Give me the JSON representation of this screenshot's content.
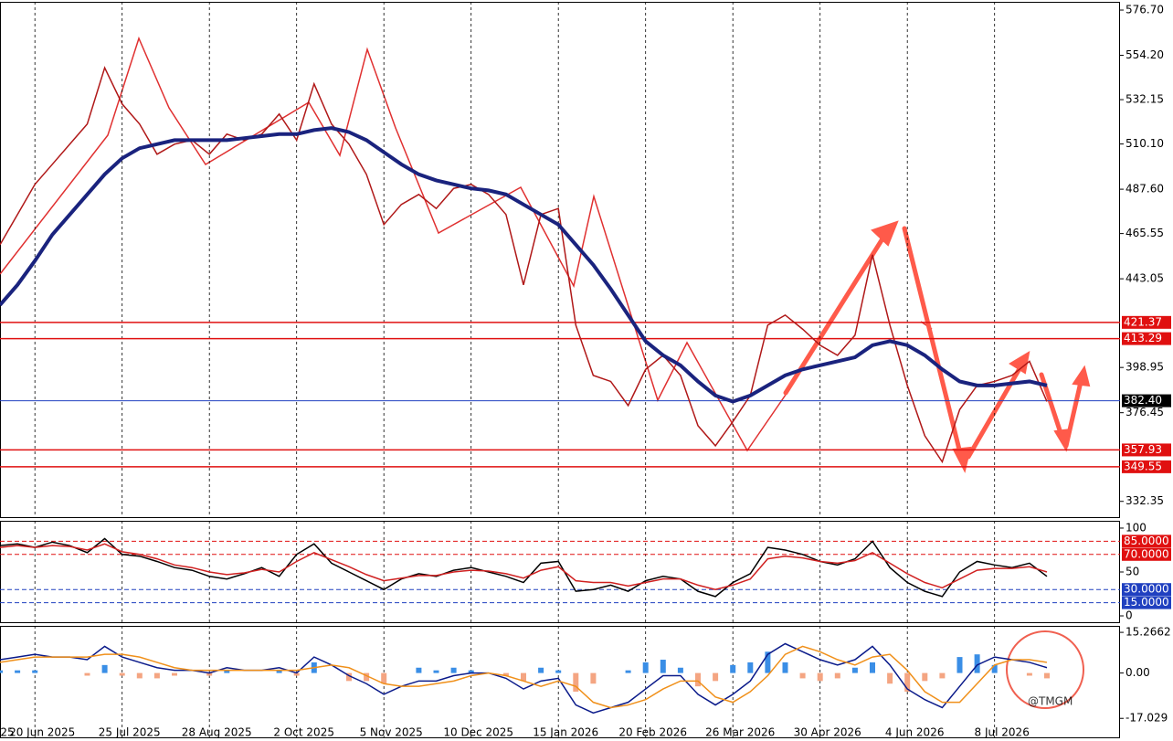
{
  "chart_data": [
    {
      "type": "line",
      "categories": [
        "25",
        null,
        "20 Jun 2025",
        null,
        null,
        null,
        null,
        "25 Jul 2025",
        null,
        null,
        null,
        null,
        "28 Aug 2025",
        null,
        null,
        null,
        null,
        "2 Oct 2025",
        null,
        null,
        null,
        null,
        "5 Nov 2025",
        null,
        null,
        null,
        null,
        "10 Dec 2025",
        null,
        null,
        null,
        null,
        "15 Jan 2026",
        null,
        null,
        null,
        null,
        "20 Feb 2026",
        null,
        null,
        null,
        null,
        "26 Mar 2026",
        null,
        null,
        null,
        null,
        "30 Apr 2026",
        null,
        null,
        null,
        null,
        "4 Jun 2026",
        null,
        null,
        null,
        null,
        "8 Jul 2026",
        null,
        null,
        null
      ],
      "series": [
        {
          "color": "#b01818",
          "values": [
            460,
            475,
            490,
            500,
            510,
            520,
            548,
            530,
            520,
            505,
            510,
            512,
            505,
            515,
            512,
            515,
            525,
            512,
            540,
            520,
            510,
            495,
            470,
            480,
            485,
            478,
            488,
            490,
            485,
            475,
            440,
            475,
            478,
            420,
            395,
            392,
            380,
            398,
            405,
            395,
            370,
            360,
            372,
            385,
            420,
            425,
            418,
            410,
            405,
            415,
            455,
            420,
            390,
            365,
            352,
            378,
            390,
            392,
            395,
            402,
            382
          ]
        },
        {
          "color": "#1a237e",
          "values": [
            430,
            440,
            452,
            465,
            475,
            485,
            495,
            503,
            508,
            510,
            512,
            512,
            512,
            512,
            513,
            514,
            515,
            515,
            517,
            518,
            516,
            512,
            506,
            500,
            495,
            492,
            490,
            488,
            487,
            485,
            480,
            475,
            470,
            460,
            450,
            438,
            425,
            412,
            405,
            400,
            392,
            385,
            382,
            385,
            390,
            395,
            398,
            400,
            402,
            404,
            410,
            412,
            410,
            405,
            398,
            392,
            390,
            390,
            391,
            392,
            390
          ]
        }
      ],
      "ylim": [
        324.5,
        580.8
      ],
      "yticks": [
        {
          "value": 576.7,
          "label": "576.70"
        },
        {
          "value": 554.2,
          "label": "554.20"
        },
        532.15,
        {
          "value": 510.1,
          "label": "510.10"
        },
        {
          "value": 487.6,
          "label": "487.60"
        },
        465.55,
        443.05,
        398.95,
        376.45,
        332.35
      ],
      "levels": [
        421.37,
        413.29,
        {
          "value": 382.4,
          "label": "382.40"
        },
        357.93,
        349.55
      ],
      "level_colors": [
        "#e01010",
        "#e01010",
        "#2040c0",
        "#e01010",
        "#e01010"
      ],
      "level_box_colors": [
        "#e01010",
        "#e01010",
        "#000000",
        "#e01010",
        "#e01010"
      ]
    },
    {
      "type": "line",
      "series": [
        {
          "color": "#000000",
          "values": [
            80,
            82,
            78,
            84,
            80,
            72,
            88,
            70,
            68,
            62,
            55,
            52,
            45,
            42,
            48,
            55,
            45,
            70,
            82,
            60,
            50,
            40,
            30,
            42,
            48,
            45,
            52,
            55,
            50,
            45,
            38,
            60,
            62,
            28,
            30,
            35,
            28,
            40,
            45,
            42,
            28,
            22,
            38,
            48,
            78,
            75,
            70,
            62,
            58,
            65,
            85,
            55,
            38,
            28,
            22,
            50,
            62,
            58,
            55,
            60,
            45
          ]
        },
        {
          "color": "#d02020",
          "values": [
            78,
            80,
            78,
            80,
            79,
            75,
            82,
            73,
            70,
            65,
            58,
            55,
            50,
            47,
            49,
            53,
            50,
            62,
            72,
            64,
            56,
            47,
            40,
            43,
            46,
            46,
            50,
            52,
            51,
            48,
            43,
            52,
            56,
            40,
            38,
            38,
            34,
            38,
            42,
            42,
            35,
            30,
            35,
            42,
            65,
            68,
            66,
            62,
            60,
            63,
            72,
            60,
            48,
            38,
            32,
            42,
            52,
            54,
            54,
            56,
            50
          ]
        }
      ],
      "ylim": [
        -8.3,
        108.3
      ],
      "yticks": [
        100,
        50,
        0
      ],
      "levels": [
        {
          "value": 85,
          "label": "85.0000"
        },
        {
          "value": 70,
          "label": "70.0000"
        },
        {
          "value": 30,
          "label": "30.0000"
        },
        {
          "value": 15,
          "label": "15.0000"
        }
      ],
      "level_colors": [
        "#e01010",
        "#e01010",
        "#2040c0",
        "#2040c0"
      ],
      "level_box_colors": [
        "#e01010",
        "#e01010",
        "#2040c0",
        "#2040c0"
      ]
    },
    {
      "type": "bar",
      "values": [
        1,
        1,
        1,
        0,
        0,
        -1,
        3,
        -1,
        -2,
        -2,
        -1,
        0,
        -1,
        1,
        0,
        0,
        1,
        -1,
        4,
        0,
        -3,
        -3,
        -4,
        0,
        2,
        1,
        2,
        1,
        0,
        -1,
        -3,
        2,
        1,
        -7,
        -4,
        0,
        1,
        4,
        5,
        2,
        -5,
        -3,
        3,
        4,
        8,
        4,
        -2,
        -3,
        -2,
        2,
        4,
        -4,
        -7,
        -3,
        -2,
        6,
        7,
        3,
        0,
        -1,
        -2
      ],
      "series": [
        {
          "color": "#0a1a8a",
          "values": [
            5,
            6,
            7,
            6,
            6,
            5,
            10,
            6,
            4,
            2,
            1,
            1,
            0,
            2,
            1,
            1,
            2,
            0,
            6,
            3,
            -1,
            -4,
            -8,
            -5,
            -3,
            -3,
            -1,
            0,
            0,
            -2,
            -6,
            -3,
            -2,
            -12,
            -15,
            -13,
            -11,
            -6,
            -1,
            -1,
            -8,
            -12,
            -8,
            -3,
            7,
            11,
            8,
            5,
            3,
            5,
            10,
            3,
            -6,
            -10,
            -13,
            -5,
            3,
            6,
            5,
            4,
            2
          ]
        },
        {
          "color": "#f0901a",
          "values": [
            4,
            5,
            6,
            6,
            6,
            6,
            7,
            7,
            6,
            4,
            2,
            1,
            1,
            1,
            1,
            1,
            1,
            1,
            2,
            3,
            2,
            -1,
            -4,
            -5,
            -5,
            -4,
            -3,
            -1,
            0,
            -1,
            -3,
            -5,
            -3,
            -5,
            -11,
            -13,
            -12,
            -10,
            -6,
            -3,
            -3,
            -9,
            -11,
            -7,
            -1,
            7,
            10,
            8,
            5,
            3,
            6,
            7,
            1,
            -7,
            -11,
            -11,
            -4,
            3,
            5,
            5,
            4
          ]
        }
      ],
      "ylim": [
        -24.5,
        17.7
      ],
      "yticks": [
        15.2662,
        {
          "value": 0,
          "label": "0.00"
        },
        -17.029
      ],
      "watermark": "@TMGM"
    }
  ]
}
